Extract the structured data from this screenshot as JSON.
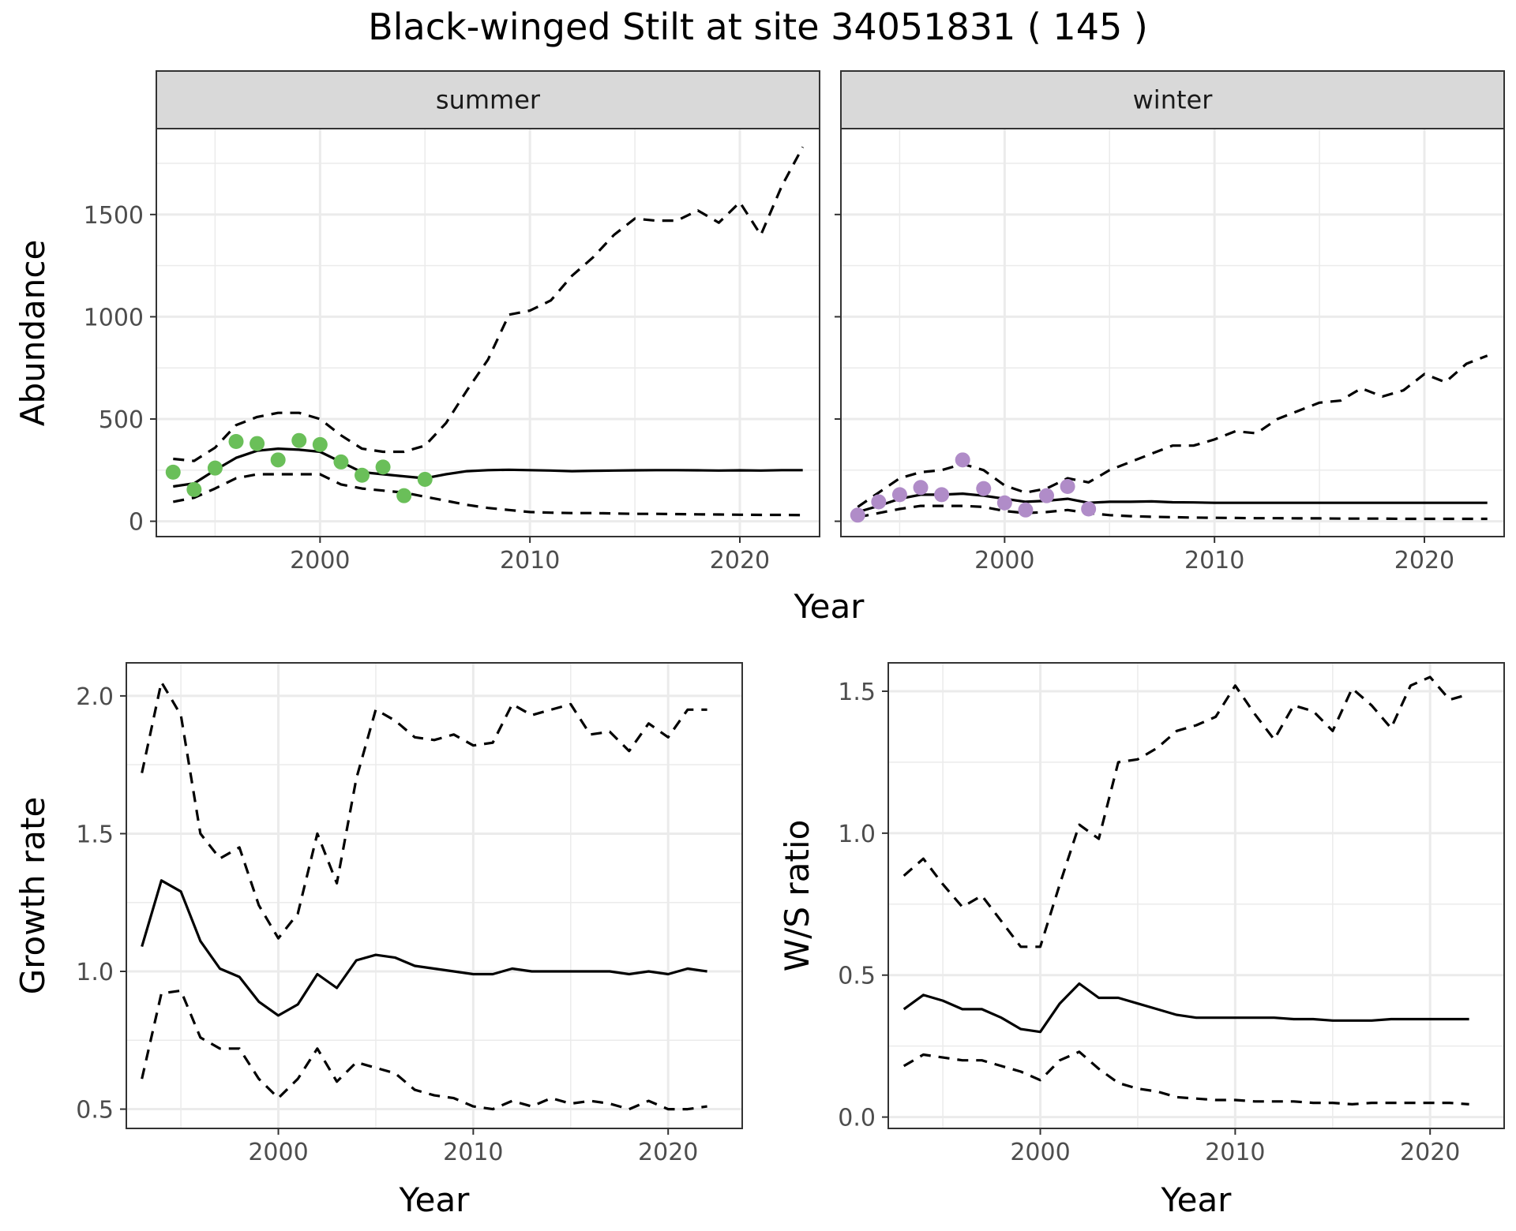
{
  "title": "Black-winged Stilt at site 34051831 ( 145 )",
  "colors": {
    "summer_points": "#6abf59",
    "winter_points": "#b08cc8",
    "line": "#000000",
    "strip_fill": "#d9d9d9"
  },
  "chart_data": [
    {
      "id": "summer",
      "type": "line",
      "panel_label": "summer",
      "xlabel": "",
      "ylabel": "Abundance",
      "xlim": [
        1992.2,
        2023.8
      ],
      "ylim": [
        -75,
        1920
      ],
      "xticks": [
        2000,
        2010,
        2020
      ],
      "yticks": [
        0,
        500,
        1000,
        1500
      ],
      "grid": true,
      "point_color": "#6abf59",
      "points": {
        "x": [
          1993,
          1994,
          1995,
          1996,
          1997,
          1998,
          1999,
          2000,
          2001,
          2002,
          2003,
          2004,
          2005
        ],
        "y": [
          240,
          155,
          260,
          390,
          380,
          300,
          395,
          375,
          290,
          225,
          265,
          125,
          205
        ]
      },
      "estimate": {
        "x": [
          1993,
          1994,
          1995,
          1996,
          1997,
          1998,
          1999,
          2000,
          2001,
          2002,
          2003,
          2004,
          2005,
          2006,
          2007,
          2008,
          2009,
          2010,
          2011,
          2012,
          2013,
          2014,
          2015,
          2016,
          2017,
          2018,
          2019,
          2020,
          2021,
          2022,
          2023
        ],
        "y": [
          170,
          185,
          250,
          310,
          345,
          355,
          350,
          340,
          290,
          240,
          230,
          220,
          210,
          230,
          245,
          250,
          252,
          250,
          248,
          245,
          247,
          248,
          249,
          250,
          250,
          249,
          248,
          249,
          248,
          250,
          250
        ]
      },
      "upper": {
        "x": [
          1993,
          1994,
          1995,
          1996,
          1997,
          1998,
          1999,
          2000,
          2001,
          2002,
          2003,
          2004,
          2005,
          2006,
          2007,
          2008,
          2009,
          2010,
          2011,
          2012,
          2013,
          2014,
          2015,
          2016,
          2017,
          2018,
          2019,
          2020,
          2021,
          2022,
          2023
        ],
        "y": [
          305,
          295,
          360,
          470,
          510,
          530,
          530,
          500,
          420,
          355,
          340,
          340,
          370,
          480,
          640,
          790,
          1010,
          1030,
          1080,
          1200,
          1290,
          1400,
          1480,
          1470,
          1470,
          1520,
          1460,
          1560,
          1400,
          1640,
          1830
        ]
      },
      "lower": {
        "x": [
          1993,
          1994,
          1995,
          1996,
          1997,
          1998,
          1999,
          2000,
          2001,
          2002,
          2003,
          2004,
          2005,
          2006,
          2007,
          2008,
          2009,
          2010,
          2011,
          2012,
          2013,
          2014,
          2015,
          2016,
          2017,
          2018,
          2019,
          2020,
          2021,
          2022,
          2023
        ],
        "y": [
          95,
          115,
          160,
          210,
          230,
          230,
          230,
          230,
          180,
          160,
          150,
          140,
          120,
          100,
          80,
          65,
          55,
          45,
          42,
          40,
          40,
          38,
          36,
          36,
          35,
          34,
          33,
          32,
          31,
          31,
          30
        ]
      }
    },
    {
      "id": "winter",
      "type": "line",
      "panel_label": "winter",
      "xlabel": "",
      "ylabel": "",
      "xlim": [
        1992.2,
        2023.8
      ],
      "ylim": [
        -75,
        1920
      ],
      "xticks": [
        2000,
        2010,
        2020
      ],
      "yticks": [
        0,
        500,
        1000,
        1500
      ],
      "grid": true,
      "point_color": "#b08cc8",
      "points": {
        "x": [
          1993,
          1994,
          1995,
          1996,
          1997,
          1998,
          1999,
          2000,
          2001,
          2002,
          2003,
          2004
        ],
        "y": [
          30,
          95,
          130,
          165,
          130,
          300,
          160,
          90,
          55,
          125,
          170,
          60
        ]
      },
      "estimate": {
        "x": [
          1993,
          1994,
          1995,
          1996,
          1997,
          1998,
          1999,
          2000,
          2001,
          2002,
          2003,
          2004,
          2005,
          2006,
          2007,
          2008,
          2009,
          2010,
          2011,
          2012,
          2013,
          2014,
          2015,
          2016,
          2017,
          2018,
          2019,
          2020,
          2021,
          2022,
          2023
        ],
        "y": [
          45,
          75,
          110,
          130,
          130,
          135,
          125,
          110,
          95,
          100,
          110,
          90,
          95,
          95,
          97,
          93,
          92,
          90,
          90,
          90,
          90,
          90,
          90,
          90,
          90,
          90,
          90,
          90,
          90,
          90,
          90
        ]
      },
      "upper": {
        "x": [
          1993,
          1994,
          1995,
          1996,
          1997,
          1998,
          1999,
          2000,
          2001,
          2002,
          2003,
          2004,
          2005,
          2006,
          2007,
          2008,
          2009,
          2010,
          2011,
          2012,
          2013,
          2014,
          2015,
          2016,
          2017,
          2018,
          2019,
          2020,
          2021,
          2022,
          2023
        ],
        "y": [
          70,
          140,
          210,
          240,
          250,
          280,
          250,
          175,
          140,
          160,
          210,
          190,
          250,
          290,
          330,
          370,
          370,
          400,
          440,
          430,
          500,
          540,
          580,
          590,
          650,
          610,
          640,
          720,
          680,
          770,
          810
        ]
      },
      "lower": {
        "x": [
          1993,
          1994,
          1995,
          1996,
          1997,
          1998,
          1999,
          2000,
          2001,
          2002,
          2003,
          2004,
          2005,
          2006,
          2007,
          2008,
          2009,
          2010,
          2011,
          2012,
          2013,
          2014,
          2015,
          2016,
          2017,
          2018,
          2019,
          2020,
          2021,
          2022,
          2023
        ],
        "y": [
          20,
          40,
          60,
          75,
          75,
          75,
          70,
          50,
          40,
          45,
          55,
          40,
          30,
          25,
          22,
          20,
          18,
          17,
          16,
          15,
          15,
          14,
          14,
          13,
          13,
          13,
          12,
          12,
          12,
          12,
          12
        ]
      }
    },
    {
      "id": "growth",
      "type": "line",
      "panel_label": "",
      "xlabel": "Year",
      "ylabel": "Growth rate",
      "xlim": [
        1992.2,
        2023.8
      ],
      "ylim": [
        0.43,
        2.12
      ],
      "xticks": [
        2000,
        2010,
        2020
      ],
      "yticks": [
        0.5,
        1.0,
        1.5,
        2.0
      ],
      "ytick_labels": [
        "0.5",
        "1.0",
        "1.5",
        "2.0"
      ],
      "grid": true,
      "estimate": {
        "x": [
          1993,
          1994,
          1995,
          1996,
          1997,
          1998,
          1999,
          2000,
          2001,
          2002,
          2003,
          2004,
          2005,
          2006,
          2007,
          2008,
          2009,
          2010,
          2011,
          2012,
          2013,
          2014,
          2015,
          2016,
          2017,
          2018,
          2019,
          2020,
          2021,
          2022
        ],
        "y": [
          1.09,
          1.33,
          1.29,
          1.11,
          1.01,
          0.98,
          0.89,
          0.84,
          0.88,
          0.99,
          0.94,
          1.04,
          1.06,
          1.05,
          1.02,
          1.01,
          1.0,
          0.99,
          0.99,
          1.01,
          1.0,
          1.0,
          1.0,
          1.0,
          1.0,
          0.99,
          1.0,
          0.99,
          1.01,
          1.0
        ]
      },
      "upper": {
        "x": [
          1993,
          1994,
          1995,
          1996,
          1997,
          1998,
          1999,
          2000,
          2001,
          2002,
          2003,
          2004,
          2005,
          2006,
          2007,
          2008,
          2009,
          2010,
          2011,
          2012,
          2013,
          2014,
          2015,
          2016,
          2017,
          2018,
          2019,
          2020,
          2021,
          2022
        ],
        "y": [
          1.72,
          2.05,
          1.93,
          1.5,
          1.41,
          1.45,
          1.24,
          1.12,
          1.21,
          1.5,
          1.32,
          1.7,
          1.95,
          1.91,
          1.85,
          1.84,
          1.86,
          1.82,
          1.83,
          1.97,
          1.93,
          1.95,
          1.97,
          1.86,
          1.87,
          1.8,
          1.9,
          1.85,
          1.95,
          1.95
        ]
      },
      "lower": {
        "x": [
          1993,
          1994,
          1995,
          1996,
          1997,
          1998,
          1999,
          2000,
          2001,
          2002,
          2003,
          2004,
          2005,
          2006,
          2007,
          2008,
          2009,
          2010,
          2011,
          2012,
          2013,
          2014,
          2015,
          2016,
          2017,
          2018,
          2019,
          2020,
          2021,
          2022
        ],
        "y": [
          0.61,
          0.92,
          0.93,
          0.76,
          0.72,
          0.72,
          0.61,
          0.54,
          0.61,
          0.72,
          0.6,
          0.67,
          0.65,
          0.63,
          0.57,
          0.55,
          0.54,
          0.51,
          0.5,
          0.53,
          0.51,
          0.54,
          0.52,
          0.53,
          0.52,
          0.5,
          0.53,
          0.5,
          0.5,
          0.51
        ]
      }
    },
    {
      "id": "ws",
      "type": "line",
      "panel_label": "",
      "xlabel": "Year",
      "ylabel": "W/S ratio",
      "xlim": [
        1992.2,
        2023.8
      ],
      "ylim": [
        -0.04,
        1.6
      ],
      "xticks": [
        2000,
        2010,
        2020
      ],
      "yticks": [
        0.0,
        0.5,
        1.0,
        1.5
      ],
      "ytick_labels": [
        "0.0",
        "0.5",
        "1.0",
        "1.5"
      ],
      "grid": true,
      "estimate": {
        "x": [
          1993,
          1994,
          1995,
          1996,
          1997,
          1998,
          1999,
          2000,
          2001,
          2002,
          2003,
          2004,
          2005,
          2006,
          2007,
          2008,
          2009,
          2010,
          2011,
          2012,
          2013,
          2014,
          2015,
          2016,
          2017,
          2018,
          2019,
          2020,
          2021,
          2022
        ],
        "y": [
          0.38,
          0.43,
          0.41,
          0.38,
          0.38,
          0.35,
          0.31,
          0.3,
          0.4,
          0.47,
          0.42,
          0.42,
          0.4,
          0.38,
          0.36,
          0.35,
          0.35,
          0.35,
          0.35,
          0.35,
          0.345,
          0.345,
          0.34,
          0.34,
          0.34,
          0.345,
          0.345,
          0.345,
          0.345,
          0.345
        ]
      },
      "upper": {
        "x": [
          1993,
          1994,
          1995,
          1996,
          1997,
          1998,
          1999,
          2000,
          2001,
          2002,
          2003,
          2004,
          2005,
          2006,
          2007,
          2008,
          2009,
          2010,
          2011,
          2012,
          2013,
          2014,
          2015,
          2016,
          2017,
          2018,
          2019,
          2020,
          2021,
          2022
        ],
        "y": [
          0.85,
          0.91,
          0.82,
          0.74,
          0.78,
          0.69,
          0.6,
          0.6,
          0.82,
          1.03,
          0.98,
          1.25,
          1.26,
          1.3,
          1.36,
          1.38,
          1.41,
          1.52,
          1.42,
          1.33,
          1.45,
          1.43,
          1.36,
          1.51,
          1.45,
          1.37,
          1.52,
          1.55,
          1.47,
          1.49
        ]
      },
      "lower": {
        "x": [
          1993,
          1994,
          1995,
          1996,
          1997,
          1998,
          1999,
          2000,
          2001,
          2002,
          2003,
          2004,
          2005,
          2006,
          2007,
          2008,
          2009,
          2010,
          2011,
          2012,
          2013,
          2014,
          2015,
          2016,
          2017,
          2018,
          2019,
          2020,
          2021,
          2022
        ],
        "y": [
          0.18,
          0.22,
          0.21,
          0.2,
          0.2,
          0.18,
          0.16,
          0.13,
          0.2,
          0.23,
          0.17,
          0.12,
          0.1,
          0.09,
          0.07,
          0.065,
          0.06,
          0.06,
          0.055,
          0.055,
          0.055,
          0.05,
          0.05,
          0.045,
          0.05,
          0.05,
          0.05,
          0.05,
          0.05,
          0.045
        ]
      }
    }
  ],
  "axis_labels": {
    "top_x": "Year"
  }
}
